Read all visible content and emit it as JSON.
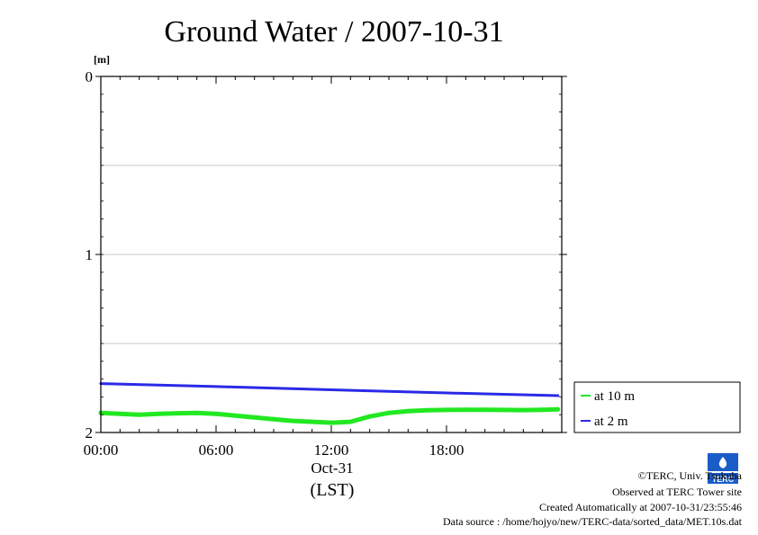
{
  "chart_data": {
    "type": "line",
    "title": "Ground Water / 2007-10-31",
    "ylabel": "[m]",
    "ylim": [
      2,
      0
    ],
    "yticks": [
      "0",
      "1",
      "2"
    ],
    "y_minor_gridlines": [
      0.5,
      1.5
    ],
    "xlim": [
      0,
      24
    ],
    "xticks": [
      "00:00",
      "06:00",
      "12:00",
      "18:00"
    ],
    "xtick_hours": [
      0,
      6,
      12,
      18
    ],
    "xdate": "Oct-31",
    "xunit": "(LST)",
    "grid": true,
    "legend_position": "right-bottom",
    "series": [
      {
        "name": "at 10 m",
        "color": "#22e822",
        "x": [
          0,
          1,
          2,
          3,
          4,
          5,
          6,
          7,
          8,
          9,
          10,
          11,
          12,
          13,
          14,
          15,
          16,
          17,
          18,
          19,
          20,
          21,
          22,
          23,
          23.8
        ],
        "y": [
          1.89,
          1.895,
          1.9,
          1.895,
          1.892,
          1.89,
          1.895,
          1.905,
          1.915,
          1.925,
          1.935,
          1.94,
          1.945,
          1.94,
          1.91,
          1.89,
          1.88,
          1.875,
          1.873,
          1.872,
          1.872,
          1.873,
          1.874,
          1.872,
          1.87
        ]
      },
      {
        "name": "at 2 m",
        "color": "#2a2ae6",
        "x": [
          0,
          6,
          12,
          18,
          23.8
        ],
        "y": [
          1.725,
          1.742,
          1.76,
          1.778,
          1.793
        ]
      }
    ]
  },
  "footer": {
    "copyright": "©TERC, Univ. Tsukuba",
    "observed": "Observed at TERC Tower site",
    "created": "Created Automatically at 2007-10-31/23:55:46",
    "source": "Data source : /home/hojyo/new/TERC-data/sorted_data/MET.10s.dat"
  },
  "logo": {
    "text": "TERC",
    "color": "#1a5cc8"
  }
}
